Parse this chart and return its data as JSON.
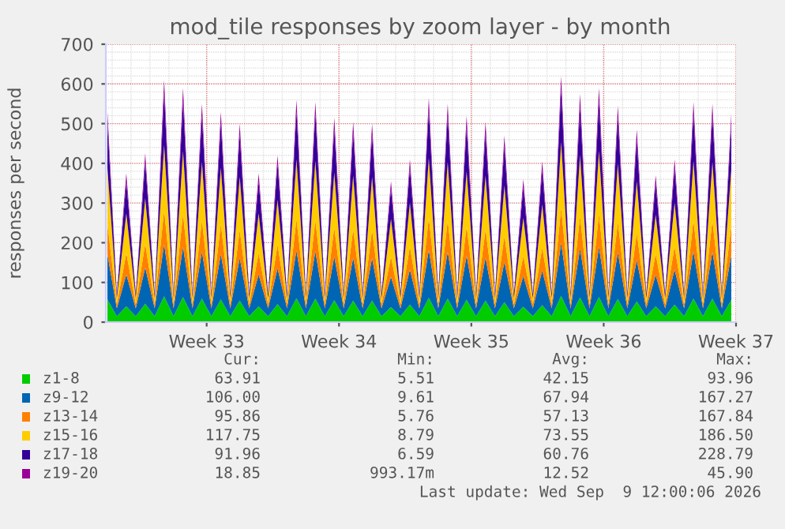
{
  "chart_data": {
    "type": "area",
    "stacked": true,
    "title": "mod_tile responses by zoom layer - by month",
    "ylabel": "responses per second",
    "x": [
      "2026-08-04T18:00",
      "2026-08-05T06:00",
      "2026-08-05T18:00",
      "2026-08-06T06:00",
      "2026-08-06T18:00",
      "2026-08-07T06:00",
      "2026-08-07T18:00",
      "2026-08-08T06:00",
      "2026-08-08T18:00",
      "2026-08-09T06:00",
      "2026-08-09T18:00",
      "2026-08-10T06:00",
      "2026-08-10T18:00",
      "2026-08-11T06:00",
      "2026-08-11T18:00",
      "2026-08-12T06:00",
      "2026-08-12T18:00",
      "2026-08-13T06:00",
      "2026-08-13T18:00",
      "2026-08-14T06:00",
      "2026-08-14T18:00",
      "2026-08-15T06:00",
      "2026-08-15T18:00",
      "2026-08-16T06:00",
      "2026-08-16T18:00",
      "2026-08-17T06:00",
      "2026-08-17T18:00",
      "2026-08-18T06:00",
      "2026-08-18T18:00",
      "2026-08-19T06:00",
      "2026-08-19T18:00",
      "2026-08-20T06:00",
      "2026-08-20T18:00",
      "2026-08-21T06:00",
      "2026-08-21T18:00",
      "2026-08-22T06:00",
      "2026-08-22T18:00",
      "2026-08-23T06:00",
      "2026-08-23T18:00",
      "2026-08-24T06:00",
      "2026-08-24T18:00",
      "2026-08-25T06:00",
      "2026-08-25T18:00",
      "2026-08-26T06:00",
      "2026-08-26T18:00",
      "2026-08-27T06:00",
      "2026-08-27T18:00",
      "2026-08-28T06:00",
      "2026-08-28T18:00",
      "2026-08-29T06:00",
      "2026-08-29T18:00",
      "2026-08-30T06:00",
      "2026-08-30T18:00",
      "2026-08-31T06:00",
      "2026-08-31T18:00",
      "2026-09-01T06:00",
      "2026-09-01T18:00",
      "2026-09-02T06:00",
      "2026-09-02T18:00",
      "2026-09-03T06:00",
      "2026-09-03T18:00",
      "2026-09-04T06:00",
      "2026-09-04T18:00",
      "2026-09-05T06:00",
      "2026-09-05T18:00",
      "2026-09-06T06:00",
      "2026-09-06T18:00"
    ],
    "xlim": [
      "2026-08-04T16:00",
      "2026-09-07"
    ],
    "xticks": [
      {
        "value": "2026-08-10",
        "label": "Week 33"
      },
      {
        "value": "2026-08-17",
        "label": "Week 34"
      },
      {
        "value": "2026-08-24",
        "label": "Week 35"
      },
      {
        "value": "2026-08-31",
        "label": "Week 36"
      },
      {
        "value": "2026-09-07",
        "label": "Week 37"
      }
    ],
    "ylim": [
      0,
      700
    ],
    "yticks": [
      0,
      100,
      200,
      300,
      400,
      500,
      600,
      700
    ],
    "grid": true,
    "legend": "bottom",
    "series": [
      {
        "name": "z1-8",
        "color": "#00cc00",
        "values": [
          57,
          15,
          40,
          15,
          46,
          15,
          65,
          15,
          63,
          15,
          59,
          15,
          57,
          15,
          54,
          15,
          40,
          15,
          45,
          15,
          60,
          15,
          59,
          15,
          55,
          15,
          54,
          15,
          54,
          15,
          38,
          15,
          44,
          15,
          61,
          15,
          59,
          15,
          56,
          15,
          54,
          15,
          50,
          15,
          39,
          15,
          43,
          15,
          66,
          15,
          62,
          15,
          63,
          15,
          58,
          15,
          52,
          15,
          40,
          15,
          44,
          15,
          59,
          15,
          59,
          15,
          56
        ]
      },
      {
        "name": "z9-12",
        "color": "#0066b3",
        "values": [
          114,
          20,
          80,
          20,
          91,
          20,
          131,
          20,
          126,
          20,
          118,
          20,
          114,
          20,
          107,
          20,
          80,
          20,
          90,
          20,
          120,
          20,
          119,
          20,
          110,
          20,
          108,
          20,
          107,
          20,
          76,
          20,
          88,
          20,
          121,
          20,
          118,
          20,
          111,
          20,
          108,
          20,
          101,
          20,
          77,
          20,
          87,
          20,
          133,
          20,
          123,
          20,
          126,
          20,
          117,
          20,
          104,
          20,
          79,
          20,
          88,
          20,
          119,
          20,
          118,
          20,
          113
        ]
      },
      {
        "name": "z13-14",
        "color": "#ff8000",
        "values": [
          76,
          10,
          54,
          10,
          61,
          10,
          87,
          10,
          84,
          10,
          79,
          10,
          76,
          10,
          71,
          10,
          54,
          10,
          60,
          10,
          80,
          10,
          79,
          10,
          74,
          10,
          72,
          10,
          71,
          10,
          51,
          10,
          59,
          10,
          81,
          10,
          79,
          10,
          74,
          10,
          72,
          10,
          67,
          10,
          51,
          10,
          58,
          10,
          89,
          10,
          82,
          10,
          84,
          10,
          78,
          10,
          69,
          10,
          53,
          10,
          59,
          10,
          79,
          10,
          79,
          10,
          75
        ]
      },
      {
        "name": "z15-16",
        "color": "#ffcc00",
        "values": [
          142,
          15,
          100,
          15,
          114,
          15,
          163,
          15,
          158,
          15,
          147,
          15,
          142,
          15,
          134,
          15,
          100,
          15,
          113,
          15,
          150,
          15,
          149,
          15,
          138,
          15,
          135,
          15,
          134,
          15,
          95,
          15,
          110,
          15,
          151,
          15,
          147,
          15,
          139,
          15,
          135,
          15,
          126,
          15,
          96,
          15,
          109,
          15,
          166,
          15,
          154,
          15,
          158,
          15,
          146,
          15,
          130,
          15,
          99,
          15,
          110,
          15,
          149,
          15,
          147,
          15,
          141
        ]
      },
      {
        "name": "z17-18",
        "color": "#330099",
        "values": [
          113,
          10,
          80,
          10,
          91,
          10,
          131,
          10,
          126,
          10,
          118,
          10,
          113,
          10,
          107,
          10,
          80,
          10,
          90,
          10,
          120,
          10,
          119,
          10,
          110,
          10,
          108,
          10,
          107,
          10,
          76,
          10,
          88,
          10,
          121,
          10,
          118,
          10,
          112,
          10,
          108,
          10,
          101,
          10,
          77,
          10,
          87,
          10,
          133,
          10,
          123,
          10,
          126,
          10,
          117,
          10,
          104,
          10,
          79,
          10,
          88,
          10,
          119,
          10,
          118,
          10,
          112
        ]
      },
      {
        "name": "z19-20",
        "color": "#990099",
        "values": [
          28,
          3,
          21,
          3,
          22,
          3,
          33,
          3,
          33,
          3,
          29,
          3,
          28,
          3,
          27,
          3,
          21,
          3,
          22,
          3,
          30,
          3,
          30,
          3,
          28,
          3,
          28,
          3,
          27,
          3,
          19,
          3,
          21,
          3,
          30,
          3,
          29,
          3,
          28,
          3,
          28,
          3,
          25,
          3,
          20,
          3,
          21,
          3,
          33,
          3,
          31,
          3,
          33,
          3,
          29,
          3,
          26,
          3,
          20,
          3,
          21,
          3,
          30,
          3,
          29,
          3,
          28
        ]
      }
    ],
    "annotations": [
      "Cur:",
      "Min:",
      "Avg:",
      "Max:",
      "63.91",
      "5.51",
      "42.15",
      "93.96",
      "106.00",
      "9.61",
      "67.94",
      "167.27",
      "95.86",
      "5.76",
      "57.13",
      "167.84",
      "117.75",
      "8.79",
      "73.55",
      "186.50",
      "91.96",
      "6.59",
      "60.76",
      "228.79",
      "18.85",
      "993.17m",
      "12.52",
      "45.90",
      "Last update: Wed Sep  9 12:00:06 2026"
    ]
  }
}
